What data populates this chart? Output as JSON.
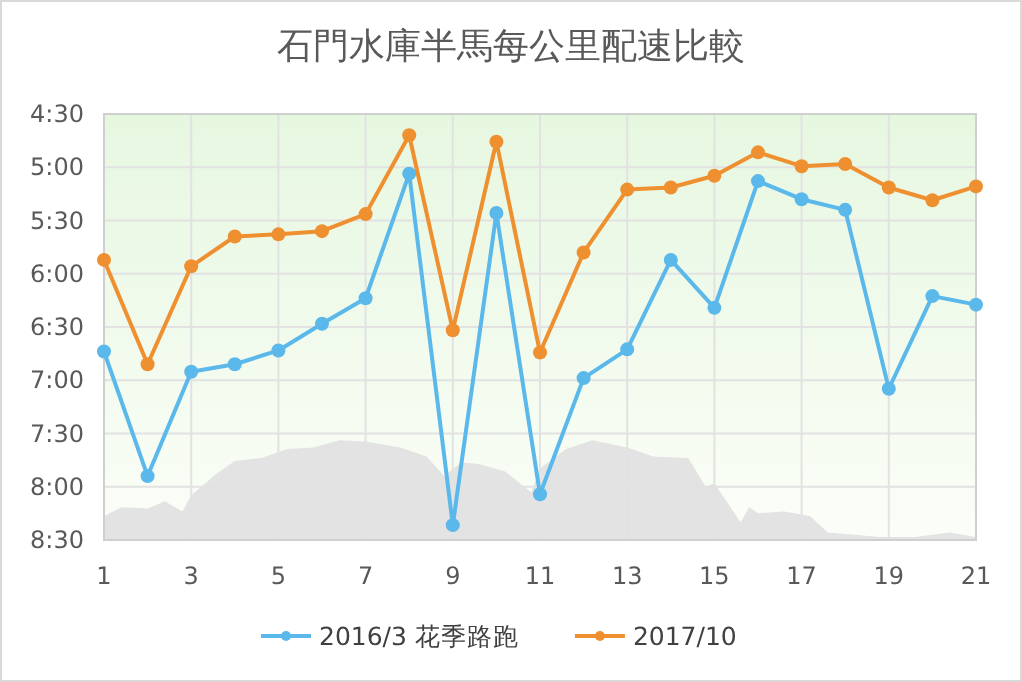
{
  "chart_data": {
    "type": "line",
    "title": "石門水庫半馬每公里配速比較",
    "x": [
      1,
      2,
      3,
      4,
      5,
      6,
      7,
      8,
      9,
      10,
      11,
      12,
      13,
      14,
      15,
      16,
      17,
      18,
      19,
      20,
      21
    ],
    "series": [
      {
        "name": "2016/3 花季路跑",
        "color": "#5bb8ea",
        "values": [
          6.73,
          7.9,
          6.92,
          6.85,
          6.72,
          6.47,
          6.23,
          5.06,
          8.36,
          5.43,
          8.07,
          6.98,
          6.71,
          5.87,
          6.32,
          5.13,
          5.3,
          5.4,
          7.08,
          6.21,
          6.29
        ]
      },
      {
        "name": "2017/10",
        "color": "#ef9030",
        "values": [
          5.87,
          6.85,
          5.93,
          5.65,
          5.63,
          5.6,
          5.44,
          4.7,
          6.53,
          4.76,
          6.74,
          5.8,
          5.21,
          5.19,
          5.08,
          4.86,
          4.99,
          4.97,
          5.19,
          5.31,
          5.18
        ]
      }
    ],
    "xlim": [
      1,
      21
    ],
    "xticks": [
      1,
      3,
      5,
      7,
      9,
      11,
      13,
      15,
      17,
      19,
      21
    ],
    "ylim": [
      8.5,
      4.5
    ],
    "yticks": [
      {
        "value": 4.5,
        "label": "4:30"
      },
      {
        "value": 5,
        "label": "5:00"
      },
      {
        "value": 5.5,
        "label": "5:30"
      },
      {
        "value": 6,
        "label": "6:00"
      },
      {
        "value": 6.5,
        "label": "6:30"
      },
      {
        "value": 7,
        "label": "7:00"
      },
      {
        "value": 7.5,
        "label": "7:30"
      },
      {
        "value": 8,
        "label": "8:00"
      },
      {
        "value": 8.5,
        "label": "8:30"
      }
    ],
    "grid": true,
    "legend": "bottom",
    "marker": "circle",
    "line_style": "solid"
  }
}
